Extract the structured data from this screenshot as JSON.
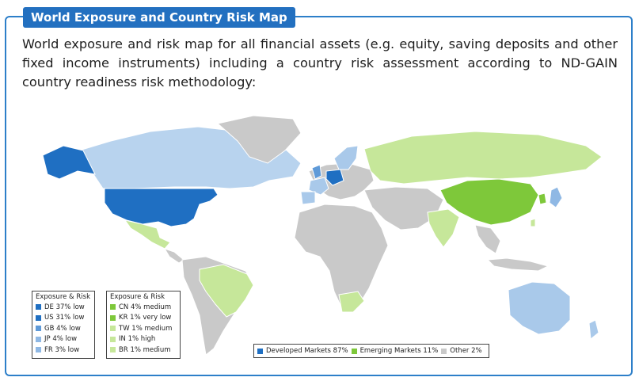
{
  "header": {
    "title": "World Exposure and Country Risk Map"
  },
  "intro": {
    "text": "World exposure and risk map for all financial assets (e.g. equity, saving deposits and other fixed income instruments) including a country risk assessment according to ND-GAIN country readiness risk methodology:"
  },
  "colors": {
    "developed_dark": "#1f6fc2",
    "developed_mid": "#5f9ad8",
    "developed_light": "#a9c9ea",
    "emerging_dark": "#7ec83a",
    "emerging_light": "#c6e79a",
    "other": "#c9c9c9",
    "accent": "#2370c0"
  },
  "legend_developed": {
    "header": "Exposure & Risk",
    "items": [
      {
        "label": "DE 37% low",
        "color": "#1f6fc2"
      },
      {
        "label": "US 31% low",
        "color": "#1f6fc2"
      },
      {
        "label": "GB 4% low",
        "color": "#5f9ad8"
      },
      {
        "label": "JP 4% low",
        "color": "#8fb8e4"
      },
      {
        "label": "FR 3% low",
        "color": "#8fb8e4"
      }
    ]
  },
  "legend_emerging": {
    "header": "Exposure & Risk",
    "items": [
      {
        "label": "CN 4% medium",
        "color": "#7ec83a"
      },
      {
        "label": "KR 1% very low",
        "color": "#7ec83a"
      },
      {
        "label": "TW 1% medium",
        "color": "#c6e79a"
      },
      {
        "label": "IN 1% high",
        "color": "#c6e79a"
      },
      {
        "label": "BR 1% medium",
        "color": "#c6e79a"
      }
    ]
  },
  "market_legend": {
    "items": [
      {
        "label": "Developed Markets 87%",
        "color": "#1f6fc2"
      },
      {
        "label": "Emerging Markets 11%",
        "color": "#7ec83a"
      },
      {
        "label": "Other 2%",
        "color": "#c9c9c9"
      }
    ]
  }
}
